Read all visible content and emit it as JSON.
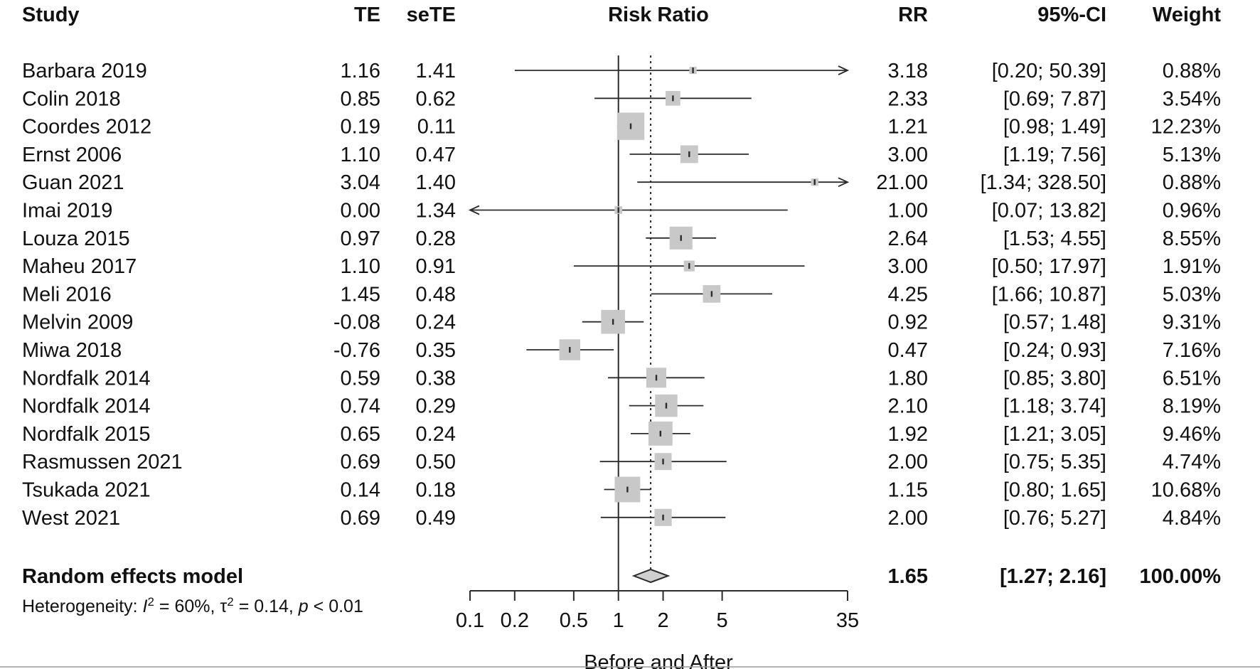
{
  "chart_data": {
    "type": "forest",
    "columns": {
      "study": "Study",
      "te": "TE",
      "sete": "seTE",
      "plot": "Risk Ratio",
      "rr": "RR",
      "ci": "95%-CI",
      "weight": "Weight"
    },
    "studies": [
      {
        "study": "Barbara 2019",
        "te": "1.16",
        "sete": "1.41",
        "rr": 3.18,
        "lower": 0.2,
        "upper": 50.39,
        "rr_text": "3.18",
        "ci_text": "[0.20; 50.39]",
        "weight": "0.88%",
        "weight_value": 0.88,
        "arrow_right": true,
        "arrow_left": false
      },
      {
        "study": "Colin 2018",
        "te": "0.85",
        "sete": "0.62",
        "rr": 2.33,
        "lower": 0.69,
        "upper": 7.87,
        "rr_text": "2.33",
        "ci_text": "[0.69; 7.87]",
        "weight": "3.54%",
        "weight_value": 3.54,
        "arrow_right": false,
        "arrow_left": false
      },
      {
        "study": "Coordes 2012",
        "te": "0.19",
        "sete": "0.11",
        "rr": 1.21,
        "lower": 0.98,
        "upper": 1.49,
        "rr_text": "1.21",
        "ci_text": "[0.98; 1.49]",
        "weight": "12.23%",
        "weight_value": 12.23,
        "arrow_right": false,
        "arrow_left": false
      },
      {
        "study": "Ernst 2006",
        "te": "1.10",
        "sete": "0.47",
        "rr": 3.0,
        "lower": 1.19,
        "upper": 7.56,
        "rr_text": "3.00",
        "ci_text": "[1.19; 7.56]",
        "weight": "5.13%",
        "weight_value": 5.13,
        "arrow_right": false,
        "arrow_left": false
      },
      {
        "study": "Guan 2021",
        "te": "3.04",
        "sete": "1.40",
        "rr": 21.0,
        "lower": 1.34,
        "upper": 328.5,
        "rr_text": "21.00",
        "ci_text": "[1.34; 328.50]",
        "weight": "0.88%",
        "weight_value": 0.88,
        "arrow_right": true,
        "arrow_left": false
      },
      {
        "study": "Imai 2019",
        "te": "0.00",
        "sete": "1.34",
        "rr": 1.0,
        "lower": 0.07,
        "upper": 13.82,
        "rr_text": "1.00",
        "ci_text": "[0.07; 13.82]",
        "weight": "0.96%",
        "weight_value": 0.96,
        "arrow_right": false,
        "arrow_left": true
      },
      {
        "study": "Louza 2015",
        "te": "0.97",
        "sete": "0.28",
        "rr": 2.64,
        "lower": 1.53,
        "upper": 4.55,
        "rr_text": "2.64",
        "ci_text": "[1.53; 4.55]",
        "weight": "8.55%",
        "weight_value": 8.55,
        "arrow_right": false,
        "arrow_left": false
      },
      {
        "study": "Maheu 2017",
        "te": "1.10",
        "sete": "0.91",
        "rr": 3.0,
        "lower": 0.5,
        "upper": 17.97,
        "rr_text": "3.00",
        "ci_text": "[0.50; 17.97]",
        "weight": "1.91%",
        "weight_value": 1.91,
        "arrow_right": false,
        "arrow_left": false
      },
      {
        "study": "Meli 2016",
        "te": "1.45",
        "sete": "0.48",
        "rr": 4.25,
        "lower": 1.66,
        "upper": 10.87,
        "rr_text": "4.25",
        "ci_text": "[1.66; 10.87]",
        "weight": "5.03%",
        "weight_value": 5.03,
        "arrow_right": false,
        "arrow_left": false
      },
      {
        "study": "Melvin 2009",
        "te": "-0.08",
        "sete": "0.24",
        "rr": 0.92,
        "lower": 0.57,
        "upper": 1.48,
        "rr_text": "0.92",
        "ci_text": "[0.57; 1.48]",
        "weight": "9.31%",
        "weight_value": 9.31,
        "arrow_right": false,
        "arrow_left": false
      },
      {
        "study": "Miwa 2018",
        "te": "-0.76",
        "sete": "0.35",
        "rr": 0.47,
        "lower": 0.24,
        "upper": 0.93,
        "rr_text": "0.47",
        "ci_text": "[0.24; 0.93]",
        "weight": "7.16%",
        "weight_value": 7.16,
        "arrow_right": false,
        "arrow_left": false
      },
      {
        "study": "Nordfalk 2014",
        "te": "0.59",
        "sete": "0.38",
        "rr": 1.8,
        "lower": 0.85,
        "upper": 3.8,
        "rr_text": "1.80",
        "ci_text": "[0.85; 3.80]",
        "weight": "6.51%",
        "weight_value": 6.51,
        "arrow_right": false,
        "arrow_left": false
      },
      {
        "study": "Nordfalk 2014",
        "te": "0.74",
        "sete": "0.29",
        "rr": 2.1,
        "lower": 1.18,
        "upper": 3.74,
        "rr_text": "2.10",
        "ci_text": "[1.18; 3.74]",
        "weight": "8.19%",
        "weight_value": 8.19,
        "arrow_right": false,
        "arrow_left": false
      },
      {
        "study": "Nordfalk 2015",
        "te": "0.65",
        "sete": "0.24",
        "rr": 1.92,
        "lower": 1.21,
        "upper": 3.05,
        "rr_text": "1.92",
        "ci_text": "[1.21; 3.05]",
        "weight": "9.46%",
        "weight_value": 9.46,
        "arrow_right": false,
        "arrow_left": false
      },
      {
        "study": "Rasmussen 2021",
        "te": "0.69",
        "sete": "0.50",
        "rr": 2.0,
        "lower": 0.75,
        "upper": 5.35,
        "rr_text": "2.00",
        "ci_text": "[0.75; 5.35]",
        "weight": "4.74%",
        "weight_value": 4.74,
        "arrow_right": false,
        "arrow_left": false
      },
      {
        "study": "Tsukada 2021",
        "te": "0.14",
        "sete": "0.18",
        "rr": 1.15,
        "lower": 0.8,
        "upper": 1.65,
        "rr_text": "1.15",
        "ci_text": "[0.80; 1.65]",
        "weight": "10.68%",
        "weight_value": 10.68,
        "arrow_right": false,
        "arrow_left": false
      },
      {
        "study": "West 2021",
        "te": "0.69",
        "sete": "0.49",
        "rr": 2.0,
        "lower": 0.76,
        "upper": 5.27,
        "rr_text": "2.00",
        "ci_text": "[0.76; 5.27]",
        "weight": "4.84%",
        "weight_value": 4.84,
        "arrow_right": false,
        "arrow_left": false
      }
    ],
    "summary": {
      "label": "Random effects model",
      "rr": 1.65,
      "lower": 1.27,
      "upper": 2.16,
      "rr_text": "1.65",
      "ci_text": "[1.27; 2.16]",
      "weight": "100.00%"
    },
    "heterogeneity": {
      "prefix": "Heterogeneity: ",
      "i2_symbol": "I",
      "i2_sup": "2",
      "i2_value": " = 60%, ",
      "tau_symbol": "τ",
      "tau_sup": "2",
      "tau_value": " = 0.14, ",
      "p_symbol": "p",
      "p_value": " < 0.01"
    },
    "x_axis": {
      "scale": "log",
      "range": [
        0.1,
        35
      ],
      "ticks": [
        {
          "value": 0.1,
          "label": "0.1"
        },
        {
          "value": 0.2,
          "label": "0.2"
        },
        {
          "value": 0.5,
          "label": "0.5"
        },
        {
          "value": 1,
          "label": "1"
        },
        {
          "value": 2,
          "label": "2"
        },
        {
          "value": 5,
          "label": "5"
        },
        {
          "value": 35,
          "label": "35"
        }
      ],
      "label": "Before and After"
    },
    "null_line": 1,
    "colors": {
      "text": "#111111",
      "line": "#2b2b2b",
      "box": "#c8c8c8",
      "diamond": "#cfcfcf",
      "divider": "#9a9a9a"
    }
  }
}
